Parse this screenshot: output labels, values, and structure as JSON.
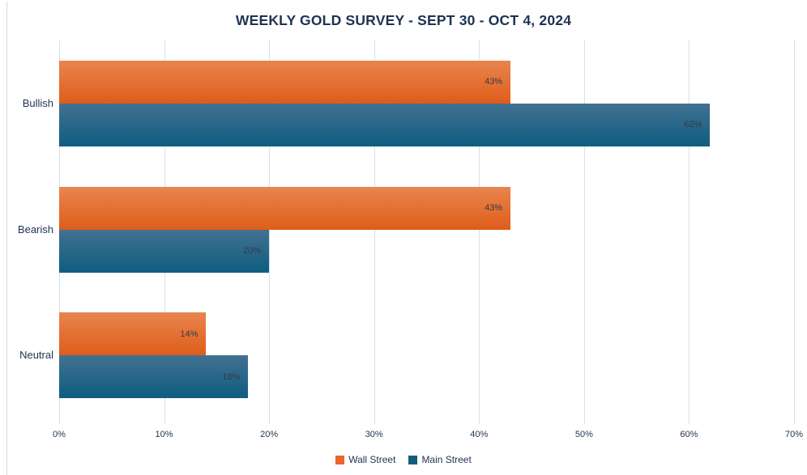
{
  "chart_data": {
    "type": "bar",
    "orientation": "horizontal",
    "title": "WEEKLY GOLD SURVEY - SEPT 30 - OCT 4, 2024",
    "categories": [
      "Bullish",
      "Bearish",
      "Neutral"
    ],
    "series": [
      {
        "name": "Wall Street",
        "values": [
          43,
          43,
          14
        ],
        "data_labels": [
          "43%",
          "43%",
          "14%"
        ],
        "color_top": "#E9854F",
        "color_bottom": "#DE5D1A",
        "legend_color": "#E8662E"
      },
      {
        "name": "Main Street",
        "values": [
          62,
          20,
          18
        ],
        "data_labels": [
          "62%",
          "20%",
          "18%"
        ],
        "color_top": "#437190",
        "color_bottom": "#0E5D81",
        "legend_color": "#155C7F"
      }
    ],
    "xlim": [
      0,
      70
    ],
    "x_ticks": [
      "0%",
      "10%",
      "20%",
      "30%",
      "40%",
      "50%",
      "60%",
      "70%"
    ],
    "xlabel": "",
    "ylabel": "",
    "grid": "vertical",
    "legend_position": "bottom"
  },
  "colors": {
    "background": "#FFFFFF",
    "title_text": "#1F3352",
    "axis_text": "#1F3352",
    "category_text": "#1F3352",
    "data_label_text": "#333A45",
    "gridline": "#CFE3F4",
    "border_line": "#C9DEF0"
  }
}
